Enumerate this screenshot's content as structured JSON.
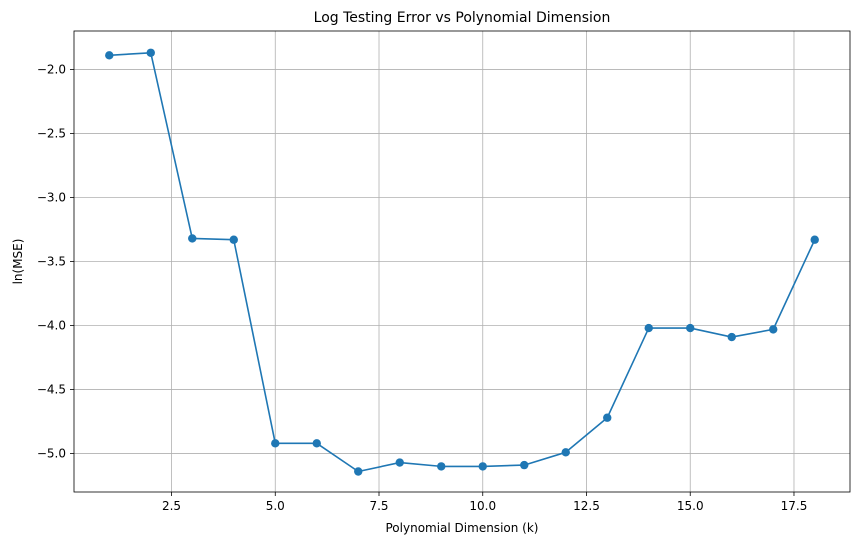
{
  "chart_data": {
    "type": "line",
    "title": "Log Testing Error vs Polynomial Dimension",
    "xlabel": "Polynomial Dimension (k)",
    "ylabel": "ln(MSE)",
    "xlim": [
      0.15,
      18.85
    ],
    "ylim": [
      -5.3,
      -1.7
    ],
    "grid": true,
    "xticks": [
      2.5,
      5.0,
      7.5,
      10.0,
      12.5,
      15.0,
      17.5
    ],
    "xtick_labels": [
      "2.5",
      "5.0",
      "7.5",
      "10.0",
      "12.5",
      "15.0",
      "17.5"
    ],
    "yticks": [
      -2.0,
      -2.5,
      -3.0,
      -3.5,
      -4.0,
      -4.5,
      -5.0
    ],
    "ytick_labels": [
      "−2.0",
      "−2.5",
      "−3.0",
      "−3.5",
      "−4.0",
      "−4.5",
      "−5.0"
    ],
    "series": [
      {
        "color": "#1f77b4",
        "marker": "circle",
        "x": [
          1,
          2,
          3,
          4,
          5,
          6,
          7,
          8,
          9,
          10,
          11,
          12,
          13,
          14,
          15,
          16,
          17,
          18
        ],
        "y": [
          -1.89,
          -1.87,
          -3.32,
          -3.33,
          -4.92,
          -4.92,
          -5.14,
          -5.07,
          -5.1,
          -5.1,
          -5.09,
          -4.99,
          -4.72,
          -4.02,
          -4.02,
          -4.09,
          -4.03,
          -3.33
        ]
      }
    ]
  }
}
